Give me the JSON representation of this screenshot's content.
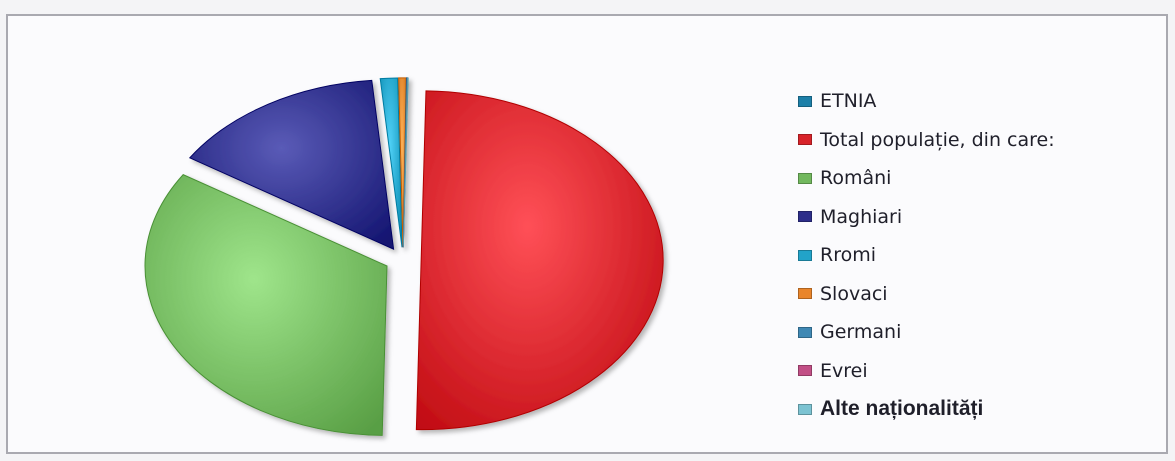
{
  "chart_data": {
    "type": "pie",
    "exploded": true,
    "legend_position": "right",
    "categories": [
      "ETNIA",
      "Total populație, din care:",
      "Români",
      "Maghiari",
      "Rromi",
      "Slovaci",
      "Germani",
      "Evrei",
      "Alte naționalități"
    ],
    "values": [
      0,
      100,
      67.5,
      29.0,
      2.3,
      1.0,
      0.1,
      0.01,
      0.1
    ],
    "colors": [
      "#1c7fa8",
      "#d8232a",
      "#72b85e",
      "#2d2e8a",
      "#22a3c9",
      "#e9852b",
      "#3f88b4",
      "#c24f86",
      "#7cc3d2"
    ]
  }
}
